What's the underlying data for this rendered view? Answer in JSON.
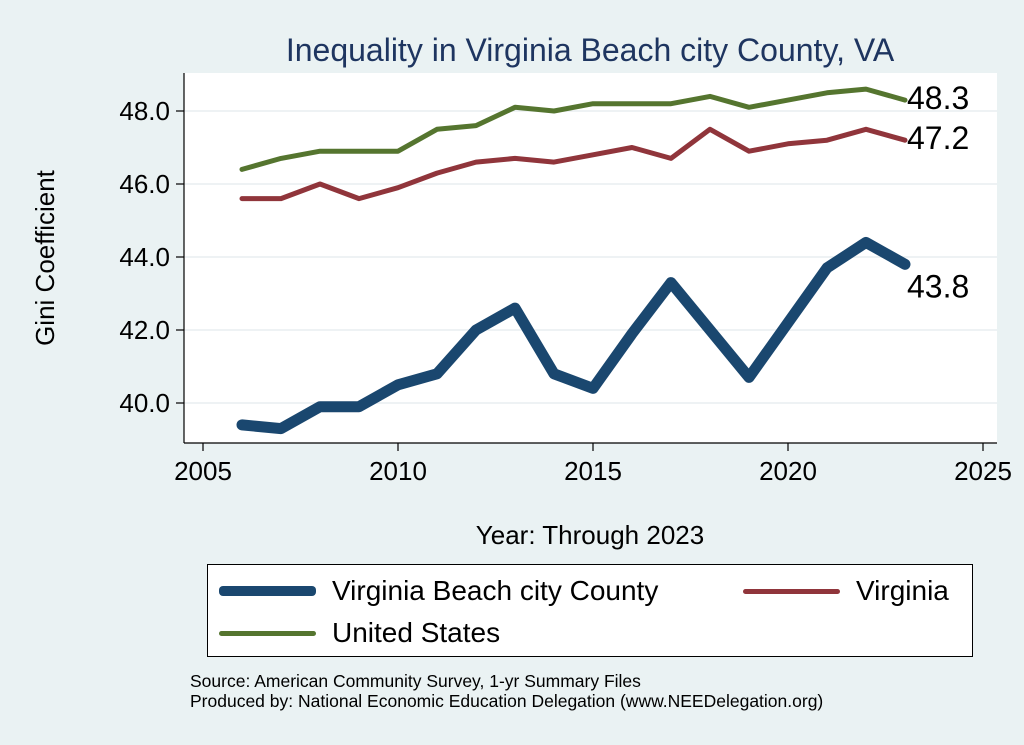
{
  "chart_data": {
    "type": "line",
    "title": "Inequality in Virginia Beach city County, VA",
    "xlabel": "Year: Through 2023",
    "ylabel": "Gini Coefficient",
    "xlim": [
      2005,
      2025
    ],
    "ylim": [
      39.2,
      49.0
    ],
    "x_ticks": [
      2005,
      2010,
      2015,
      2020,
      2025
    ],
    "y_ticks": [
      40.0,
      42.0,
      44.0,
      46.0,
      48.0
    ],
    "y_tick_labels": [
      "40.0",
      "42.0",
      "44.0",
      "46.0",
      "48.0"
    ],
    "grid": true,
    "legend_position": "bottom",
    "series": [
      {
        "name": "Virginia Beach city County",
        "color": "#1a476f",
        "x": [
          2006,
          2007,
          2008,
          2009,
          2010,
          2011,
          2012,
          2013,
          2014,
          2015,
          2016,
          2017,
          2018,
          2019,
          2020,
          2021,
          2022,
          2023
        ],
        "values": [
          39.4,
          39.3,
          39.9,
          39.9,
          40.5,
          40.8,
          42.0,
          42.6,
          40.8,
          40.4,
          41.9,
          43.3,
          42.0,
          40.7,
          42.2,
          43.7,
          44.4,
          43.8
        ],
        "end_label": "43.8"
      },
      {
        "name": "Virginia",
        "color": "#90353b",
        "x": [
          2006,
          2007,
          2008,
          2009,
          2010,
          2011,
          2012,
          2013,
          2014,
          2015,
          2016,
          2017,
          2018,
          2019,
          2020,
          2021,
          2022,
          2023
        ],
        "values": [
          45.6,
          45.6,
          46.0,
          45.6,
          45.9,
          46.3,
          46.6,
          46.7,
          46.6,
          46.8,
          47.0,
          46.7,
          47.5,
          46.9,
          47.1,
          47.2,
          47.5,
          47.2
        ],
        "end_label": "47.2"
      },
      {
        "name": "United States",
        "color": "#55752f",
        "x": [
          2006,
          2007,
          2008,
          2009,
          2010,
          2011,
          2012,
          2013,
          2014,
          2015,
          2016,
          2017,
          2018,
          2019,
          2020,
          2021,
          2022,
          2023
        ],
        "values": [
          46.4,
          46.7,
          46.9,
          46.9,
          46.9,
          47.5,
          47.6,
          48.1,
          48.0,
          48.2,
          48.2,
          48.2,
          48.4,
          48.1,
          48.3,
          48.5,
          48.6,
          48.3
        ],
        "end_label": "48.3"
      }
    ]
  },
  "footer": {
    "source": "Source: American Community Survey, 1-yr Summary Files",
    "produced_by": "Produced by: National Economic Education Delegation (www.NEEDelegation.org)"
  }
}
